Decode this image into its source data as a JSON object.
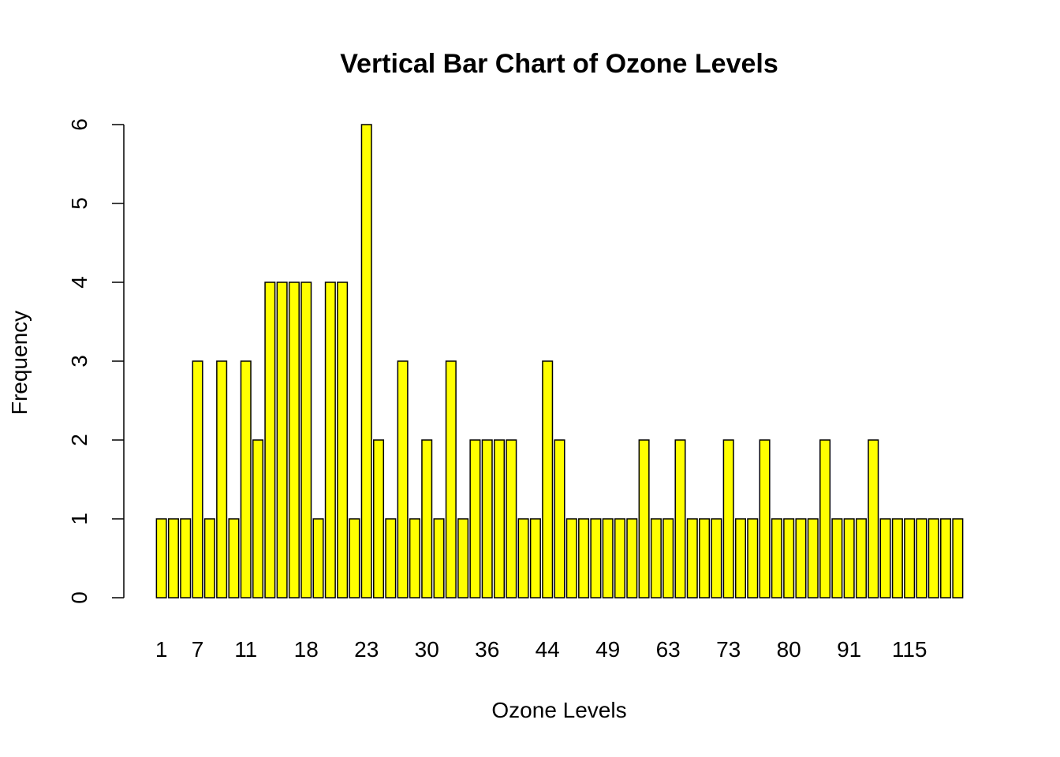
{
  "chart_data": {
    "type": "bar",
    "title": "Vertical Bar Chart of Ozone Levels",
    "xlabel": "Ozone Levels",
    "ylabel": "Frequency",
    "ylim": [
      0,
      6
    ],
    "y_ticks": [
      0,
      1,
      2,
      3,
      4,
      5,
      6
    ],
    "y_tick_labels": [
      "0",
      "1",
      "2",
      "3",
      "4",
      "5",
      "6"
    ],
    "bar_color": "#ffff00",
    "bar_border_color": "#000000",
    "grid": false,
    "values": [
      1,
      1,
      1,
      3,
      1,
      3,
      1,
      3,
      2,
      4,
      4,
      4,
      4,
      1,
      4,
      4,
      1,
      6,
      2,
      1,
      3,
      1,
      2,
      1,
      3,
      1,
      2,
      2,
      2,
      2,
      1,
      1,
      3,
      2,
      1,
      1,
      1,
      1,
      1,
      1,
      2,
      1,
      1,
      2,
      1,
      1,
      1,
      2,
      1,
      1,
      2,
      1,
      1,
      1,
      1,
      2,
      1,
      1,
      1,
      2,
      1,
      1,
      1,
      1,
      1,
      1,
      1
    ],
    "visible_tick_labels": [
      {
        "bar_index": 0,
        "label": "1"
      },
      {
        "bar_index": 3,
        "label": "7"
      },
      {
        "bar_index": 7,
        "label": "11"
      },
      {
        "bar_index": 12,
        "label": "18"
      },
      {
        "bar_index": 17,
        "label": "23"
      },
      {
        "bar_index": 22,
        "label": "30"
      },
      {
        "bar_index": 27,
        "label": "36"
      },
      {
        "bar_index": 32,
        "label": "44"
      },
      {
        "bar_index": 37,
        "label": "49"
      },
      {
        "bar_index": 42,
        "label": "63"
      },
      {
        "bar_index": 47,
        "label": "73"
      },
      {
        "bar_index": 52,
        "label": "80"
      },
      {
        "bar_index": 57,
        "label": "91"
      },
      {
        "bar_index": 62,
        "label": "115"
      }
    ]
  }
}
